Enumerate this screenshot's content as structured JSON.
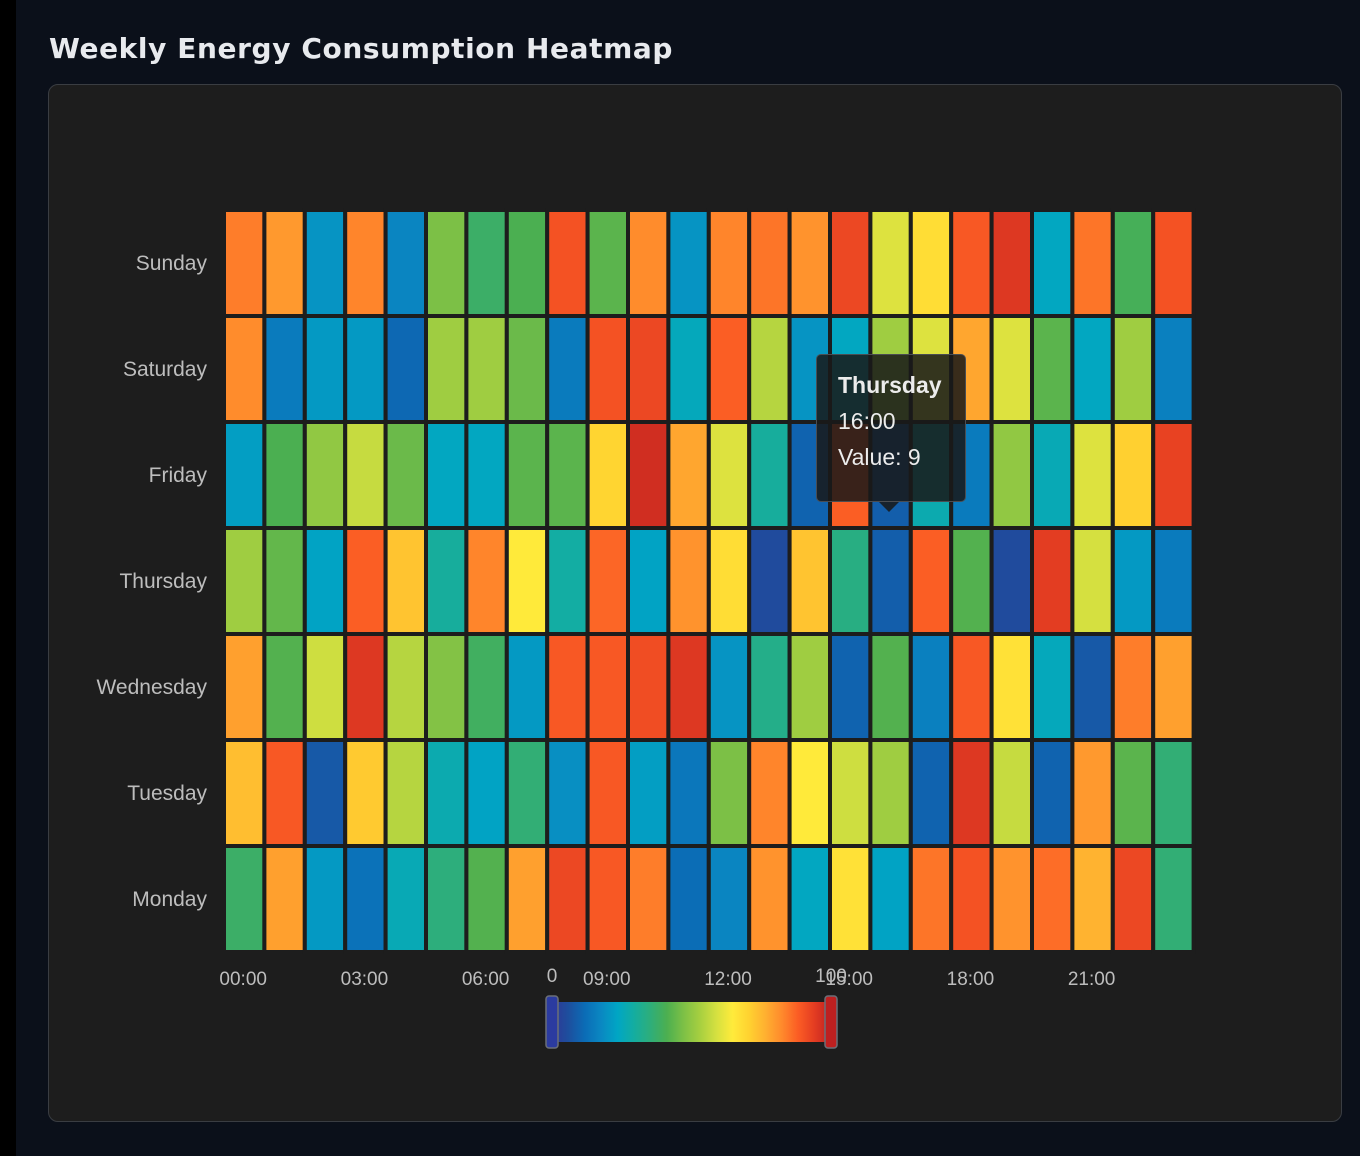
{
  "page": {
    "title": "Weekly Energy Consumption Heatmap"
  },
  "chart_data": {
    "type": "heatmap",
    "title": "Weekly Energy Consumption Heatmap",
    "x_categories": [
      "00:00",
      "01:00",
      "02:00",
      "03:00",
      "04:00",
      "05:00",
      "06:00",
      "07:00",
      "08:00",
      "09:00",
      "10:00",
      "11:00",
      "12:00",
      "13:00",
      "14:00",
      "15:00",
      "16:00",
      "17:00",
      "18:00",
      "19:00",
      "20:00",
      "21:00",
      "22:00",
      "23:00"
    ],
    "x_tick_labels_shown": [
      "00:00",
      "03:00",
      "06:00",
      "09:00",
      "12:00",
      "15:00",
      "18:00",
      "21:00"
    ],
    "y_categories": [
      "Monday",
      "Tuesday",
      "Wednesday",
      "Thursday",
      "Friday",
      "Saturday",
      "Sunday"
    ],
    "value_range": [
      0,
      100
    ],
    "visual_map": {
      "min_label": "0",
      "max_label": "100",
      "colors": [
        "#313695",
        "#1d4f9e",
        "#0b6cb6",
        "#0a88c2",
        "#00a6c4",
        "#14ada0",
        "#2eae7a",
        "#4caf50",
        "#7cc046",
        "#a6cf40",
        "#d4e040",
        "#ffeb3b",
        "#ffd230",
        "#ffb030",
        "#ff8a2c",
        "#fb5c24",
        "#e33c22",
        "#bd2020"
      ]
    },
    "values": [
      [
        38,
        79,
        21,
        13,
        26,
        35,
        42,
        79,
        92,
        89,
        84,
        12,
        17,
        81,
        24,
        67,
        23,
        85,
        90,
        81,
        86,
        76,
        92,
        36
      ],
      [
        74,
        89,
        8,
        72,
        55,
        27,
        23,
        36,
        19,
        89,
        22,
        14,
        47,
        83,
        65,
        58,
        52,
        10,
        95,
        57,
        10,
        80,
        43,
        36
      ],
      [
        79,
        42,
        58,
        95,
        55,
        48,
        39,
        21,
        89,
        89,
        91,
        95,
        20,
        33,
        52,
        10,
        42,
        16,
        89,
        67,
        25,
        8,
        84,
        79
      ],
      [
        52,
        44,
        23,
        88,
        73,
        30,
        83,
        65,
        29,
        87,
        23,
        81,
        68,
        5,
        73,
        34,
        9,
        88,
        42,
        5,
        94,
        59,
        21,
        15
      ],
      [
        22,
        41,
        50,
        57,
        45,
        24,
        24,
        43,
        43,
        70,
        97,
        78,
        60,
        30,
        10,
        88,
        9,
        27,
        15,
        50,
        26,
        60,
        71,
        93
      ],
      [
        82,
        15,
        21,
        21,
        11,
        52,
        52,
        45,
        15,
        90,
        92,
        25,
        88,
        55,
        20,
        24,
        52,
        60,
        78,
        60,
        43,
        24,
        52,
        16
      ],
      [
        84,
        80,
        20,
        83,
        17,
        47,
        38,
        41,
        90,
        43,
        82,
        20,
        83,
        85,
        81,
        92,
        60,
        68,
        89,
        95,
        24,
        85,
        40,
        90
      ]
    ],
    "tooltip": {
      "day": "Thursday",
      "time": "16:00",
      "value_text": "Value: 9"
    },
    "grid": false,
    "legend": "bottom-center"
  }
}
